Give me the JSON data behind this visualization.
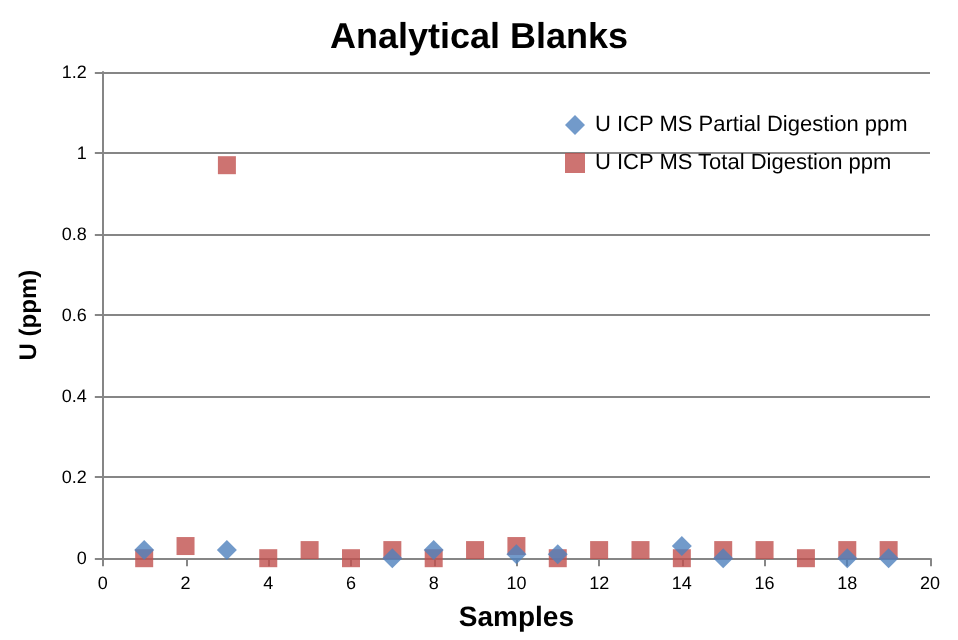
{
  "chart_data": {
    "type": "scatter",
    "title": "Analytical Blanks",
    "xlabel": "Samples",
    "ylabel": "U (ppm)",
    "x": [
      1,
      2,
      3,
      4,
      5,
      6,
      7,
      8,
      9,
      10,
      11,
      12,
      13,
      14,
      15,
      16,
      17,
      18,
      19
    ],
    "series": [
      {
        "name": "U ICP MS Partial Digestion ppm",
        "color": "#4f81bd",
        "marker": "diamond",
        "values": [
          0.02,
          null,
          0.02,
          null,
          null,
          null,
          0,
          0.02,
          null,
          0.01,
          0.01,
          null,
          null,
          0.03,
          0,
          null,
          null,
          0,
          0
        ]
      },
      {
        "name": "U ICP MS Total Digestion ppm",
        "color": "#c0504d",
        "marker": "square",
        "values": [
          0,
          0.03,
          0.97,
          0,
          0.02,
          0,
          0.02,
          0,
          0.02,
          0.03,
          0,
          0.02,
          0.02,
          0,
          0.02,
          0.02,
          0,
          0.02,
          0.02
        ]
      }
    ],
    "xlim": [
      0,
      20
    ],
    "xticks": [
      0,
      2,
      4,
      6,
      8,
      10,
      12,
      14,
      16,
      18,
      20
    ],
    "ylim": [
      0,
      1.2
    ],
    "yticks": [
      0,
      0.2,
      0.4,
      0.6,
      0.8,
      1,
      1.2
    ],
    "grid": "y",
    "legend": "top right"
  }
}
